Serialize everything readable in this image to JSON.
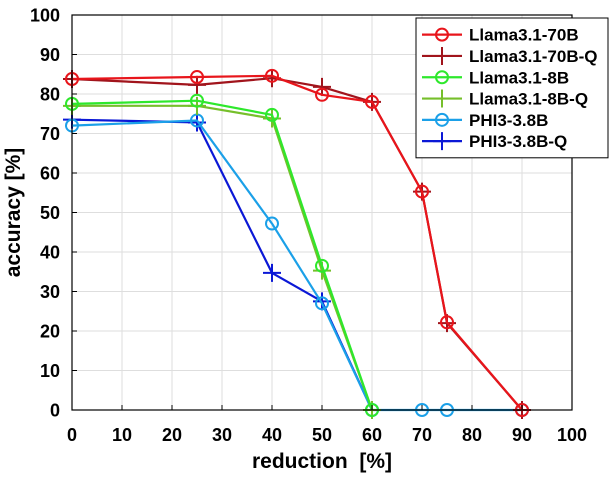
{
  "chart_data": {
    "type": "line",
    "title": "",
    "xlabel": "reduction  [%]",
    "ylabel": "accuracy [%]",
    "xlim": [
      0,
      100
    ],
    "ylim": [
      0,
      100
    ],
    "xticks": [
      0,
      10,
      20,
      30,
      40,
      50,
      60,
      70,
      80,
      90,
      100
    ],
    "yticks": [
      0,
      10,
      20,
      30,
      40,
      50,
      60,
      70,
      80,
      90,
      100
    ],
    "grid": true,
    "legend_position": "top-right",
    "series": [
      {
        "name": "Llama3.1-70B",
        "color": "#e8151b",
        "marker": "circle",
        "x": [
          0,
          25,
          40,
          50,
          60,
          70,
          75,
          90
        ],
        "y": [
          83.8,
          84.3,
          84.6,
          79.8,
          78.0,
          55.3,
          22.2,
          0.0
        ]
      },
      {
        "name": "Llama3.1-70B-Q",
        "color": "#a1141c",
        "marker": "plus",
        "x": [
          0,
          25,
          40,
          50,
          60,
          70,
          75,
          90
        ],
        "y": [
          83.8,
          82.3,
          84.0,
          81.8,
          78.0,
          55.3,
          22.0,
          0.0
        ]
      },
      {
        "name": "Llama3.1-8B",
        "color": "#2ee82c",
        "marker": "circle",
        "x": [
          0,
          25,
          40,
          50,
          60
        ],
        "y": [
          77.5,
          78.3,
          74.7,
          36.5,
          0.0
        ]
      },
      {
        "name": "Llama3.1-8B-Q",
        "color": "#76bf2b",
        "marker": "plus",
        "x": [
          0,
          25,
          40,
          50,
          60
        ],
        "y": [
          77.0,
          77.0,
          73.8,
          35.3,
          0.0
        ]
      },
      {
        "name": "PHI3-3.8B",
        "color": "#1ba0e8",
        "marker": "circle",
        "x": [
          0,
          25,
          40,
          50,
          60,
          70,
          75,
          90
        ],
        "y": [
          72.0,
          73.3,
          47.2,
          27.0,
          0.0,
          0.0,
          0.0,
          0.0
        ]
      },
      {
        "name": "PHI3-3.8B-Q",
        "color": "#0b18d6",
        "marker": "plus",
        "x": [
          0,
          25,
          40,
          50,
          60
        ],
        "y": [
          73.5,
          72.8,
          34.7,
          27.5,
          0.0
        ]
      }
    ]
  }
}
